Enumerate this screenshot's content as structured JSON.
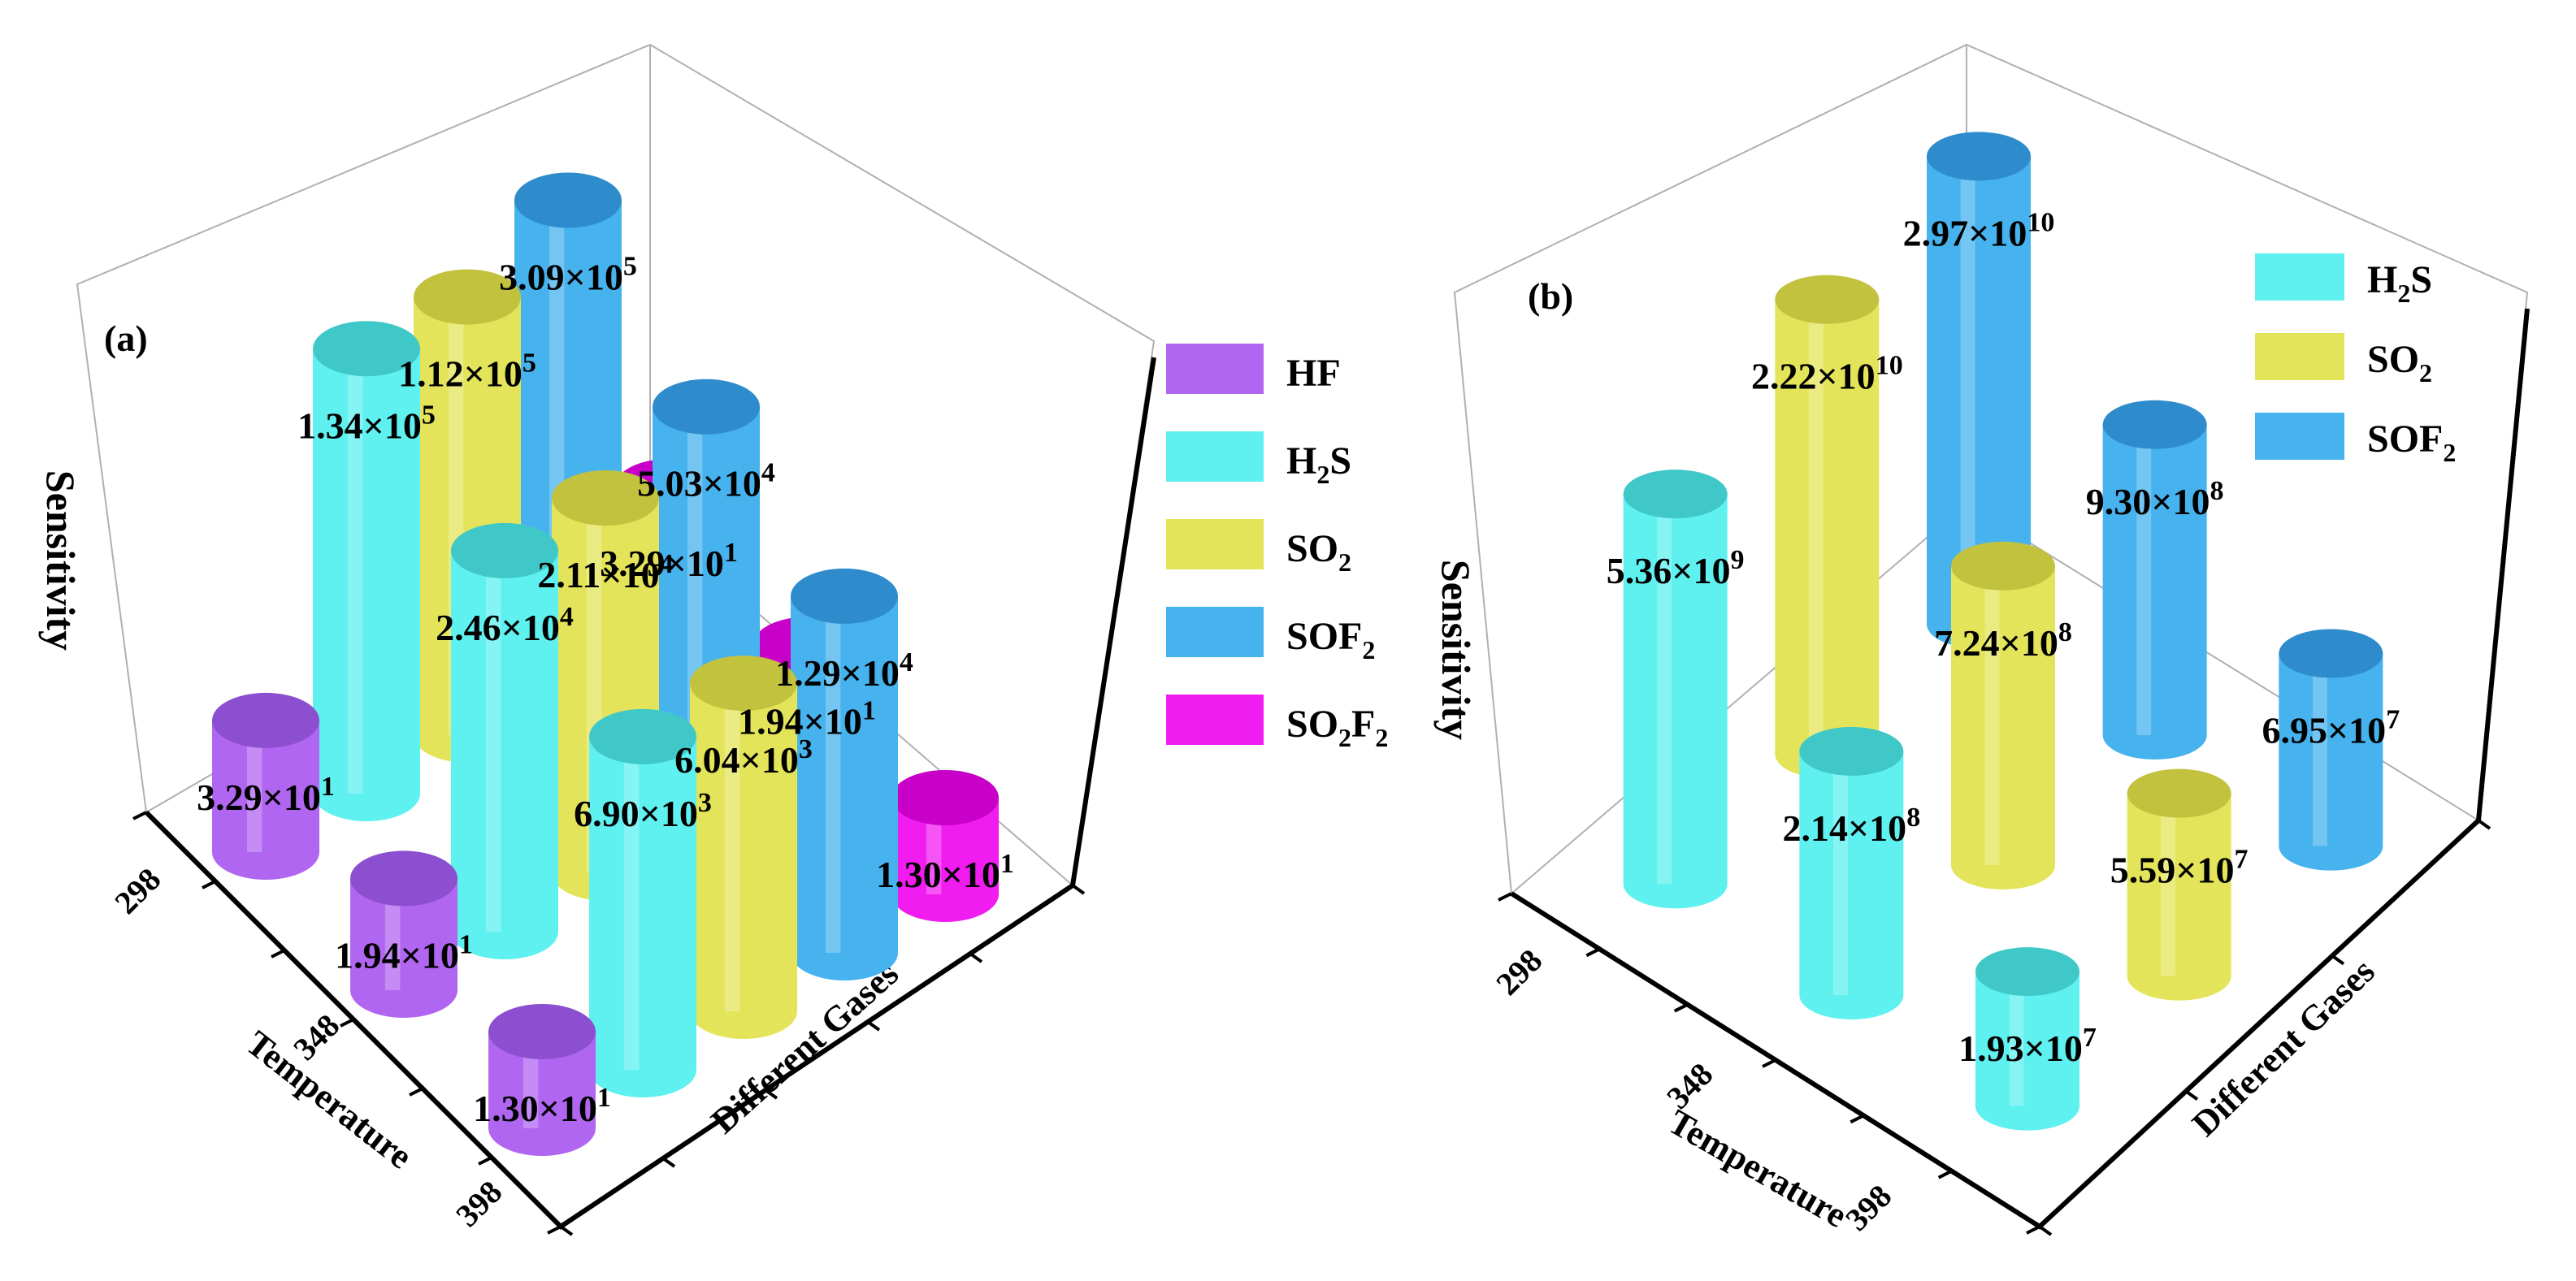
{
  "chart_data": [
    {
      "type": "bar3d",
      "panel_label": "(a)",
      "ylabel": "Sensitivity",
      "xlabel": "Temperature",
      "zlabel": "Different Gases",
      "temperatures": [
        "298",
        "348",
        "398"
      ],
      "series": [
        {
          "name": "HF",
          "color": "#b066f0",
          "top_color": "#8c4fd0",
          "values": [
            32.9,
            19.4,
            13.0
          ],
          "labels": [
            [
              "3.29×10",
              "1"
            ],
            [
              "1.94×10",
              "1"
            ],
            [
              "1.30×10",
              "1"
            ]
          ]
        },
        {
          "name": "H2S",
          "color": "#5ff0f0",
          "top_color": "#40c8c8",
          "values": [
            134000,
            24600,
            6900
          ],
          "labels": [
            [
              "1.34×10",
              "5"
            ],
            [
              "2.46×10",
              "4"
            ],
            [
              "6.90×10",
              "3"
            ]
          ]
        },
        {
          "name": "SO2",
          "color": "#e4e45a",
          "top_color": "#c2c23e",
          "values": [
            112000,
            21100,
            6040
          ],
          "labels": [
            [
              "1.12×10",
              "5"
            ],
            [
              "2.11×10",
              "4"
            ],
            [
              "6.04×10",
              "3"
            ]
          ]
        },
        {
          "name": "SOF2",
          "color": "#46b2ee",
          "top_color": "#2e8ccc",
          "values": [
            309000,
            50300,
            12900
          ],
          "labels": [
            [
              "3.09×10",
              "5"
            ],
            [
              "5.03×10",
              "4"
            ],
            [
              "1.29×10",
              "4"
            ]
          ]
        },
        {
          "name": "SO2F2",
          "color": "#f01cf0",
          "top_color": "#c800c8",
          "values": [
            32.9,
            19.4,
            13.0
          ],
          "labels": [
            [
              "3.29×10",
              "1"
            ],
            [
              "1.94×10",
              "1"
            ],
            [
              "1.30×10",
              "1"
            ]
          ]
        }
      ],
      "legend": [
        {
          "base": "HF",
          "sub": "",
          "tail": ""
        },
        {
          "base": "H",
          "sub": "2",
          "tail": "S"
        },
        {
          "base": "SO",
          "sub": "2",
          "tail": ""
        },
        {
          "base": "SOF",
          "sub": "2",
          "tail": ""
        },
        {
          "base": "SO",
          "sub": "2",
          "tail": "F",
          "sub2": "2"
        }
      ]
    },
    {
      "type": "bar3d",
      "panel_label": "(b)",
      "ylabel": "Sensitivity",
      "xlabel": "Temperature",
      "zlabel": "Different Gases",
      "temperatures": [
        "298",
        "348",
        "398"
      ],
      "series": [
        {
          "name": "H2S",
          "color": "#5ff0f0",
          "top_color": "#40c8c8",
          "values": [
            5360000000,
            214000000,
            19300000
          ],
          "labels": [
            [
              "5.36×10",
              "9"
            ],
            [
              "2.14×10",
              "8"
            ],
            [
              "1.93×10",
              "7"
            ]
          ]
        },
        {
          "name": "SO2",
          "color": "#e4e45a",
          "top_color": "#c2c23e",
          "values": [
            22200000000,
            724000000,
            55900000
          ],
          "labels": [
            [
              "2.22×10",
              "10"
            ],
            [
              "7.24×10",
              "8"
            ],
            [
              "5.59×10",
              "7"
            ]
          ]
        },
        {
          "name": "SOF2",
          "color": "#46b2ee",
          "top_color": "#2e8ccc",
          "values": [
            29700000000,
            930000000,
            69500000
          ],
          "labels": [
            [
              "2.97×10",
              "10"
            ],
            [
              "9.30×10",
              "8"
            ],
            [
              "6.95×10",
              "7"
            ]
          ]
        }
      ],
      "legend": [
        {
          "base": "H",
          "sub": "2",
          "tail": "S"
        },
        {
          "base": "SO",
          "sub": "2",
          "tail": ""
        },
        {
          "base": "SOF",
          "sub": "2",
          "tail": ""
        }
      ]
    }
  ]
}
